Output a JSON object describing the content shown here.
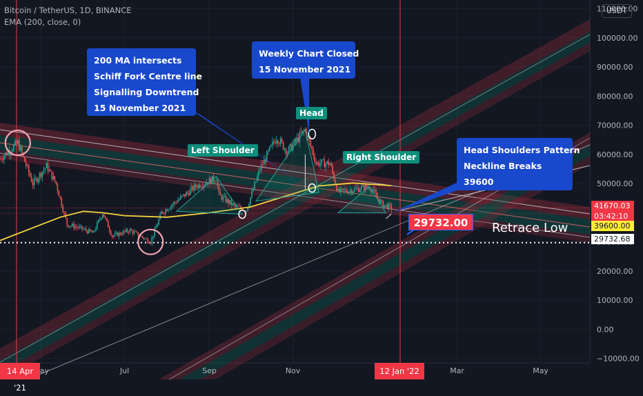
{
  "header": {
    "symbol_line": "Bitcoin / TetherUS, 1D, BINANCE",
    "indicator_line": "EMA (200, close, 0)"
  },
  "currency_label": "USDT",
  "annotations": {
    "ma_callout": [
      "200 MA intersects",
      "Schiff Fork Centre line",
      "Signalling Downtrend",
      "15 November 2021"
    ],
    "weekly_callout": [
      "Weekly Chart Closed",
      "15 November 2021"
    ],
    "neckline_callout": [
      "Head Shoulders Pattern",
      "Neckline Breaks",
      "39600"
    ],
    "head_label": "Head",
    "left_shoulder_label": "Left Shoulder",
    "right_shoulder_label": "Right Shoulder",
    "target_price": "29732.00",
    "retrace_label": "Retrace Low"
  },
  "price_tags": {
    "last_price": "41670.03",
    "countdown": "03:42:10",
    "neckline": "39600.00",
    "retrace": "29732.68"
  },
  "date_tags": {
    "start": "14 Apr '21",
    "end": "12 Jan '22"
  },
  "colors": {
    "background": "#131722",
    "candle_up": "#26a69a",
    "candle_down": "#ef5350",
    "ema": "#f5d442",
    "callout": "#1848cc",
    "pattern_label": "#0e8f7c",
    "tag_red": "#f23645",
    "neckline_tag": "#ffeb3b"
  },
  "chart_data": {
    "type": "candlestick",
    "x_ticks": [
      "May",
      "Jul",
      "Sep",
      "Nov",
      "Mar",
      "May"
    ],
    "y_ticks": [
      110000,
      100000,
      90000,
      80000,
      70000,
      60000,
      50000,
      40000,
      30000,
      20000,
      10000,
      0,
      -10000
    ],
    "y_tick_labels": [
      "110000.00",
      "100000.00",
      "90000.00",
      "80000.00",
      "70000.00",
      "60000.00",
      "50000.00",
      "40000.00",
      "30000.00",
      "20000.00",
      "10000.00",
      "0.00",
      "−10000.00"
    ],
    "ylim": [
      -11500,
      113000
    ],
    "xlim": [
      "2021-04-01",
      "2022-06-06"
    ],
    "price_path": [
      [
        "2021-04-01",
        58500
      ],
      [
        "2021-04-14",
        64000
      ],
      [
        "2021-04-25",
        50000
      ],
      [
        "2021-05-05",
        56000
      ],
      [
        "2021-05-12",
        50000
      ],
      [
        "2021-05-20",
        36000
      ],
      [
        "2021-05-28",
        35000
      ],
      [
        "2021-06-08",
        33000
      ],
      [
        "2021-06-15",
        40000
      ],
      [
        "2021-06-22",
        32000
      ],
      [
        "2021-07-05",
        34000
      ],
      [
        "2021-07-20",
        30000
      ],
      [
        "2021-07-28",
        40000
      ],
      [
        "2021-08-08",
        44000
      ],
      [
        "2021-08-22",
        49000
      ],
      [
        "2021-09-06",
        52000
      ],
      [
        "2021-09-08",
        46000
      ],
      [
        "2021-09-20",
        42000
      ],
      [
        "2021-09-28",
        41000
      ],
      [
        "2021-10-08",
        55000
      ],
      [
        "2021-10-20",
        66000
      ],
      [
        "2021-10-28",
        61000
      ],
      [
        "2021-11-10",
        68500
      ],
      [
        "2021-11-18",
        57000
      ],
      [
        "2021-11-28",
        57000
      ],
      [
        "2021-12-04",
        47000
      ],
      [
        "2021-12-16",
        48000
      ],
      [
        "2021-12-27",
        49000
      ],
      [
        "2022-01-05",
        43000
      ],
      [
        "2022-01-12",
        41670
      ]
    ],
    "ema_200": [
      [
        "2021-04-01",
        30500
      ],
      [
        "2021-05-15",
        38500
      ],
      [
        "2021-06-01",
        40500
      ],
      [
        "2021-06-15",
        40000
      ],
      [
        "2021-07-01",
        39000
      ],
      [
        "2021-08-01",
        38500
      ],
      [
        "2021-09-01",
        40000
      ],
      [
        "2021-10-01",
        42000
      ],
      [
        "2021-11-01",
        46500
      ],
      [
        "2021-11-20",
        49200
      ],
      [
        "2021-12-15",
        50200
      ],
      [
        "2022-01-12",
        49300
      ]
    ],
    "head": {
      "date": "2021-11-10",
      "price": 68500
    },
    "left_shoulder": {
      "date": "2021-09-06",
      "price": 52500
    },
    "right_shoulder": {
      "date": "2021-12-27",
      "price": 49000
    },
    "neckline": 39600,
    "last_price": 41670.03,
    "retrace_low": 29732.68
  }
}
